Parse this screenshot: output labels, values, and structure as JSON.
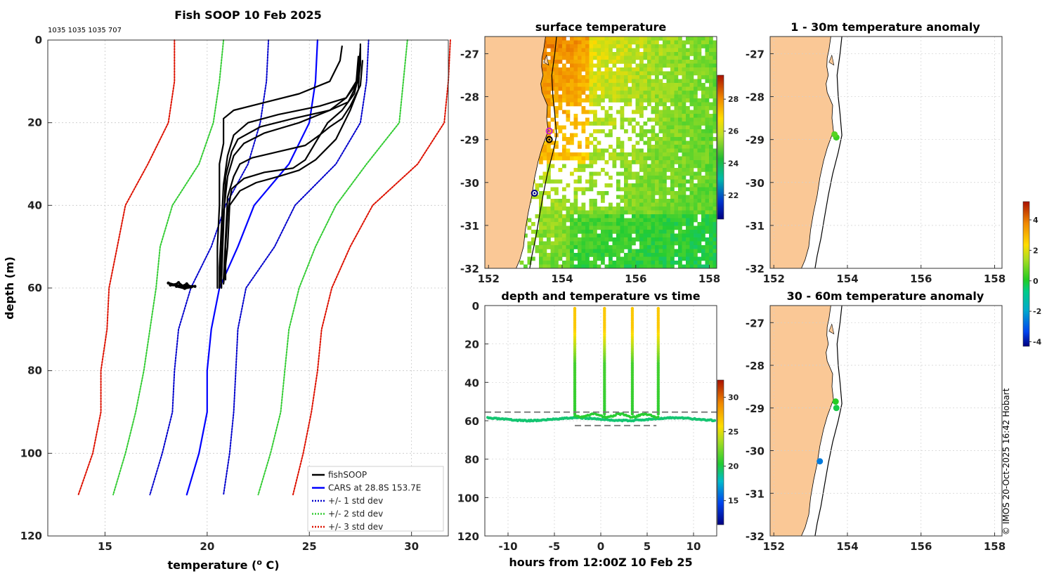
{
  "chart_data": [
    {
      "id": "profile",
      "type": "line",
      "title": "Fish SOOP 10 Feb 2025",
      "subtitle": "1035 1035 1035 707",
      "xlabel": "temperature (",
      "xlabel_sup": "o",
      "xlabel_unit": " C)",
      "ylabel": "depth (m)",
      "xlim": [
        12.2,
        31.8
      ],
      "ylim": [
        0,
        120
      ],
      "y_reversed": true,
      "grid": true,
      "xticks": [
        15,
        20,
        25,
        30
      ],
      "yticks": [
        0,
        20,
        40,
        60,
        80,
        100,
        120
      ],
      "legend_position": "bottom-right",
      "legend": [
        {
          "label": "fishSOOP",
          "color": "#000000",
          "dash": "solid"
        },
        {
          "label": "CARS at 28.8S 153.7E",
          "color": "#0000ff",
          "dash": "solid"
        },
        {
          "label": "+/- 1 std dev",
          "color": "#0000cc",
          "dash": "dotted"
        },
        {
          "label": "+/- 2 std dev",
          "color": "#33cc33",
          "dash": "dotted"
        },
        {
          "label": "+/- 3 std dev",
          "color": "#dd1100",
          "dash": "dotted"
        }
      ],
      "series": [
        {
          "name": "CARS mean",
          "color": "#0000ff",
          "dash": "solid",
          "width": 2.2,
          "points": [
            [
              25.4,
              0
            ],
            [
              25.3,
              10
            ],
            [
              25.0,
              20
            ],
            [
              24.0,
              30
            ],
            [
              22.3,
              40
            ],
            [
              21.5,
              50
            ],
            [
              20.6,
              60
            ],
            [
              20.2,
              70
            ],
            [
              20.0,
              80
            ],
            [
              20.0,
              90
            ],
            [
              19.6,
              100
            ],
            [
              19.0,
              110
            ]
          ]
        },
        {
          "name": "+1 sd",
          "color": "#0000cc",
          "dash": "dotted",
          "width": 2,
          "points": [
            [
              23.0,
              0
            ],
            [
              22.9,
              10
            ],
            [
              22.6,
              20
            ],
            [
              22.0,
              30
            ],
            [
              20.9,
              40
            ],
            [
              20.2,
              50
            ],
            [
              19.2,
              60
            ],
            [
              18.6,
              70
            ],
            [
              18.4,
              80
            ],
            [
              18.3,
              90
            ],
            [
              17.8,
              100
            ],
            [
              17.2,
              110
            ]
          ]
        },
        {
          "name": "-1 sd",
          "color": "#0000cc",
          "dash": "dotted",
          "width": 2,
          "points": [
            [
              27.9,
              0
            ],
            [
              27.8,
              10
            ],
            [
              27.5,
              20
            ],
            [
              26.3,
              30
            ],
            [
              24.3,
              40
            ],
            [
              23.3,
              50
            ],
            [
              21.9,
              60
            ],
            [
              21.5,
              70
            ],
            [
              21.4,
              80
            ],
            [
              21.3,
              90
            ],
            [
              21.1,
              100
            ],
            [
              20.8,
              110
            ]
          ]
        },
        {
          "name": "+2 sd",
          "color": "#33cc33",
          "dash": "dotted",
          "width": 2,
          "points": [
            [
              20.8,
              0
            ],
            [
              20.6,
              10
            ],
            [
              20.3,
              20
            ],
            [
              19.6,
              30
            ],
            [
              18.3,
              40
            ],
            [
              17.7,
              50
            ],
            [
              17.5,
              60
            ],
            [
              17.2,
              70
            ],
            [
              16.9,
              80
            ],
            [
              16.5,
              90
            ],
            [
              16.0,
              100
            ],
            [
              15.4,
              110
            ]
          ]
        },
        {
          "name": "-2 sd",
          "color": "#33cc33",
          "dash": "dotted",
          "width": 2,
          "points": [
            [
              29.8,
              0
            ],
            [
              29.6,
              10
            ],
            [
              29.4,
              20
            ],
            [
              27.8,
              30
            ],
            [
              26.3,
              40
            ],
            [
              25.3,
              50
            ],
            [
              24.5,
              60
            ],
            [
              24.0,
              70
            ],
            [
              23.8,
              80
            ],
            [
              23.6,
              90
            ],
            [
              23.1,
              100
            ],
            [
              22.5,
              110
            ]
          ]
        },
        {
          "name": "+3 sd",
          "color": "#dd1100",
          "dash": "dotted",
          "width": 2,
          "points": [
            [
              18.4,
              0
            ],
            [
              18.4,
              10
            ],
            [
              18.1,
              20
            ],
            [
              17.1,
              30
            ],
            [
              16.0,
              40
            ],
            [
              15.6,
              50
            ],
            [
              15.2,
              60
            ],
            [
              15.1,
              70
            ],
            [
              14.8,
              80
            ],
            [
              14.8,
              90
            ],
            [
              14.4,
              100
            ],
            [
              13.7,
              110
            ]
          ]
        },
        {
          "name": "-3 sd",
          "color": "#dd1100",
          "dash": "dotted",
          "width": 2,
          "points": [
            [
              31.9,
              0
            ],
            [
              31.8,
              10
            ],
            [
              31.6,
              20
            ],
            [
              30.3,
              30
            ],
            [
              28.1,
              40
            ],
            [
              27.0,
              50
            ],
            [
              26.1,
              60
            ],
            [
              25.6,
              70
            ],
            [
              25.4,
              80
            ],
            [
              25.1,
              90
            ],
            [
              24.7,
              100
            ],
            [
              24.2,
              110
            ]
          ]
        },
        {
          "name": "fishSOOP cast 1",
          "color": "#000000",
          "dash": "solid",
          "width": 2.2,
          "points": [
            [
              26.6,
              1.5
            ],
            [
              26.5,
              5
            ],
            [
              26.0,
              10
            ],
            [
              24.5,
              13
            ],
            [
              22.5,
              15.5
            ],
            [
              21.3,
              17
            ],
            [
              20.8,
              19
            ],
            [
              20.8,
              25
            ],
            [
              20.6,
              30
            ],
            [
              20.6,
              40
            ],
            [
              20.5,
              50
            ],
            [
              20.5,
              60
            ]
          ]
        },
        {
          "name": "fishSOOP cast 2",
          "color": "#000000",
          "dash": "solid",
          "width": 2.2,
          "points": [
            [
              27.5,
              1
            ],
            [
              27.5,
              6
            ],
            [
              27.4,
              10
            ],
            [
              26.8,
              14
            ],
            [
              25.5,
              16
            ],
            [
              23.5,
              18
            ],
            [
              22.0,
              20
            ],
            [
              21.3,
              23
            ],
            [
              21.0,
              28
            ],
            [
              20.8,
              35
            ],
            [
              20.7,
              45
            ],
            [
              20.6,
              55
            ],
            [
              20.6,
              60
            ]
          ]
        },
        {
          "name": "fishSOOP cast 3",
          "color": "#000000",
          "dash": "solid",
          "width": 2.2,
          "points": [
            [
              27.5,
              2
            ],
            [
              27.4,
              8
            ],
            [
              27.3,
              11
            ],
            [
              26.9,
              15
            ],
            [
              26.0,
              17
            ],
            [
              24.2,
              19
            ],
            [
              22.6,
              21
            ],
            [
              21.5,
              24
            ],
            [
              21.2,
              27
            ],
            [
              20.9,
              33
            ],
            [
              20.8,
              45
            ],
            [
              20.7,
              58
            ],
            [
              20.7,
              60
            ]
          ]
        },
        {
          "name": "fishSOOP cast 4",
          "color": "#000000",
          "dash": "solid",
          "width": 2.2,
          "points": [
            [
              27.4,
              4
            ],
            [
              27.3,
              10
            ],
            [
              26.8,
              14
            ],
            [
              26.0,
              17
            ],
            [
              24.5,
              20
            ],
            [
              22.8,
              22.5
            ],
            [
              21.8,
              25
            ],
            [
              21.3,
              28
            ],
            [
              21.0,
              33
            ],
            [
              20.8,
              42
            ],
            [
              20.7,
              52
            ],
            [
              20.6,
              60
            ]
          ]
        },
        {
          "name": "fishSOOP cast 5",
          "color": "#000000",
          "dash": "solid",
          "width": 2.2,
          "points": [
            [
              27.6,
              5
            ],
            [
              27.5,
              11
            ],
            [
              27.0,
              16
            ],
            [
              26.6,
              19
            ],
            [
              26.0,
              21
            ],
            [
              25.5,
              23
            ],
            [
              24.8,
              25.5
            ],
            [
              23.5,
              27
            ],
            [
              22.2,
              28.5
            ],
            [
              21.6,
              30
            ],
            [
              21.3,
              33
            ],
            [
              21.0,
              38
            ],
            [
              20.9,
              48
            ],
            [
              20.8,
              58
            ]
          ]
        },
        {
          "name": "fishSOOP cast 6",
          "color": "#000000",
          "dash": "solid",
          "width": 2.2,
          "points": [
            [
              27.4,
              9
            ],
            [
              27.2,
              13
            ],
            [
              26.6,
              17
            ],
            [
              25.9,
              20
            ],
            [
              25.4,
              24
            ],
            [
              24.8,
              29
            ],
            [
              24.2,
              31
            ],
            [
              22.8,
              32
            ],
            [
              21.8,
              33.5
            ],
            [
              21.2,
              36
            ],
            [
              21.0,
              42
            ],
            [
              20.9,
              50
            ],
            [
              20.9,
              58
            ]
          ]
        },
        {
          "name": "fishSOOP cast 7",
          "color": "#000000",
          "dash": "solid",
          "width": 2.2,
          "points": [
            [
              27.5,
              2
            ],
            [
              27.4,
              12
            ],
            [
              27.0,
              17
            ],
            [
              26.7,
              20
            ],
            [
              26.3,
              24
            ],
            [
              25.3,
              29
            ],
            [
              24.5,
              31.5
            ],
            [
              23.5,
              33
            ],
            [
              22.4,
              34.5
            ],
            [
              21.6,
              36.5
            ],
            [
              21.1,
              40
            ],
            [
              21.0,
              50
            ],
            [
              20.8,
              59
            ]
          ]
        }
      ],
      "cluster": {
        "name": "bottom cluster",
        "points": [
          [
            18.1,
            58.8
          ],
          [
            18.4,
            59.2
          ],
          [
            18.6,
            58.7
          ],
          [
            18.8,
            59.5
          ],
          [
            19.0,
            59.0
          ],
          [
            19.2,
            59.8
          ],
          [
            18.9,
            60.1
          ],
          [
            18.5,
            59.6
          ],
          [
            19.4,
            59.6
          ],
          [
            18.2,
            59.3
          ]
        ]
      }
    },
    {
      "id": "sst",
      "type": "heatmap",
      "title": "surface temperature",
      "xlim": [
        151.9,
        158.2
      ],
      "ylim": [
        -32,
        -26.6
      ],
      "xticks": [
        152,
        154,
        156,
        158
      ],
      "yticks": [
        -27,
        -28,
        -29,
        -30,
        -31,
        -32
      ],
      "colorbar": {
        "min": 20.5,
        "max": 29.5,
        "ticks": [
          22,
          24,
          26,
          28
        ]
      },
      "markers": [
        {
          "lon": 153.65,
          "lat": -28.8,
          "color": "#cc22cc"
        },
        {
          "lon": 153.65,
          "lat": -29.0,
          "color": "#000000"
        },
        {
          "lon": 153.25,
          "lat": -30.25,
          "color": "#000080"
        }
      ]
    },
    {
      "id": "anomaly_1_30",
      "type": "scatter",
      "title": "1 - 30m temperature anomaly",
      "xlim": [
        151.9,
        158.2
      ],
      "ylim": [
        -32,
        -26.6
      ],
      "xticks": [
        152,
        154,
        156,
        158
      ],
      "yticks": [
        -27,
        -28,
        -29,
        -30,
        -31,
        -32
      ],
      "points": [
        {
          "lon": 153.7,
          "lat": -28.95,
          "anomaly": 0.3
        },
        {
          "lon": 153.65,
          "lat": -28.88,
          "anomaly": 0.6
        }
      ]
    },
    {
      "id": "anomaly_30_60",
      "type": "scatter",
      "title": "30 - 60m temperature anomaly",
      "xlim": [
        151.9,
        158.2
      ],
      "ylim": [
        -32,
        -26.6
      ],
      "xticks": [
        152,
        154,
        156,
        158
      ],
      "yticks": [
        -27,
        -28,
        -29,
        -30,
        -31,
        -32
      ],
      "points": [
        {
          "lon": 153.7,
          "lat": -29.0,
          "anomaly": -0.2
        },
        {
          "lon": 153.68,
          "lat": -28.85,
          "anomaly": 0.1
        },
        {
          "lon": 153.25,
          "lat": -30.25,
          "anomaly": -2.6
        }
      ],
      "colorbar": {
        "min": -4.3,
        "max": 5.2,
        "ticks": [
          -4,
          -2,
          0,
          2,
          4
        ]
      }
    },
    {
      "id": "timeseries",
      "type": "scatter",
      "title": "depth and temperature vs time",
      "xlabel": "hours from 12:00Z 10 Feb 25",
      "xlim": [
        -12.5,
        12.5
      ],
      "ylim": [
        0,
        120
      ],
      "y_reversed": true,
      "xticks": [
        -10,
        -5,
        0,
        5,
        10
      ],
      "yticks": [
        0,
        20,
        40,
        60,
        80,
        100,
        120
      ],
      "casts": [
        -2.8,
        0.4,
        3.4,
        6.2
      ],
      "dashed_lines": [
        {
          "depth": 55.5,
          "x": [
            -12.5,
            12.5
          ]
        },
        {
          "depth": 62.5,
          "x": [
            -2.8,
            6.0
          ]
        }
      ],
      "colorbar": {
        "min": 11.5,
        "max": 32.5,
        "ticks": [
          15,
          20,
          25,
          30
        ]
      }
    }
  ],
  "watermark": "© IMOS 20-Oct-2025 16:42 Hobart"
}
